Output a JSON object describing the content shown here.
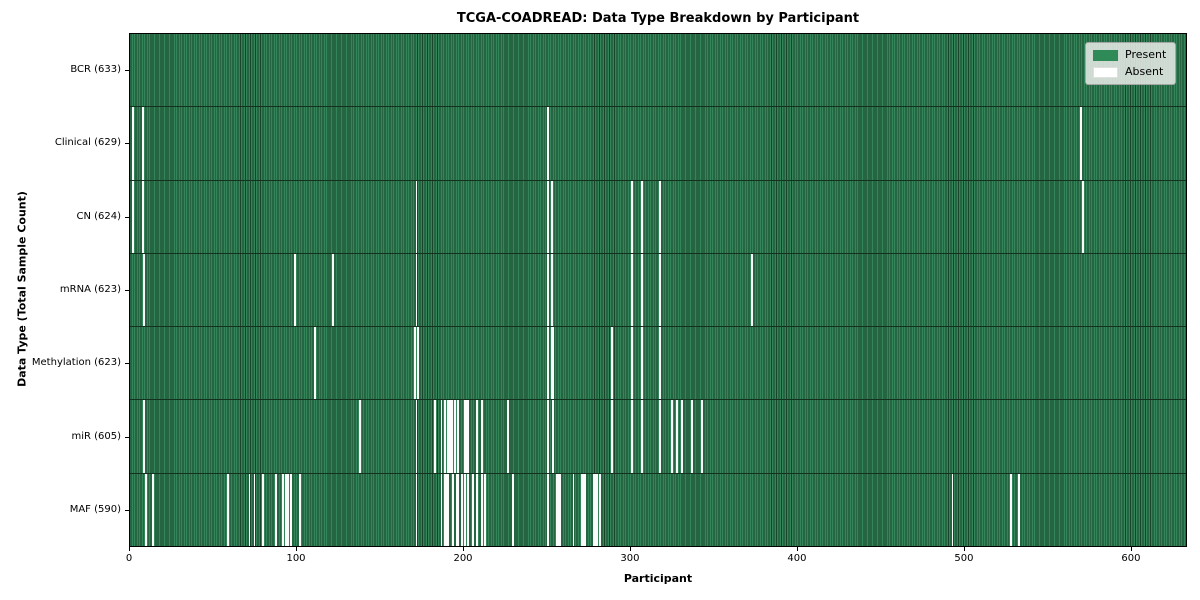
{
  "title": "TCGA-COADREAD: Data Type Breakdown by Participant",
  "chart_data": {
    "type": "heatmap",
    "title": "TCGA-COADREAD: Data Type Breakdown by Participant",
    "xlabel": "Participant",
    "ylabel": "Data Type (Total Sample Count)",
    "xlim": [
      0,
      633
    ],
    "x_ticks": [
      0,
      100,
      200,
      300,
      400,
      500,
      600
    ],
    "n_participants": 633,
    "present_color": "#2e8b57",
    "absent_color": "#ffffff",
    "grid": false,
    "legend_position": "upper right",
    "legend_items": [
      {
        "label": "Present",
        "color": "#2e8b57"
      },
      {
        "label": "Absent",
        "color": "#ffffff"
      }
    ],
    "rows": [
      {
        "label": "BCR (633)",
        "data_type": "BCR",
        "present_count": 633,
        "absent_participants": []
      },
      {
        "label": "Clinical (629)",
        "data_type": "Clinical",
        "present_count": 629,
        "absent_participants": [
          1,
          7,
          250,
          569
        ]
      },
      {
        "label": "CN (624)",
        "data_type": "CN",
        "present_count": 624,
        "absent_participants": [
          1,
          7,
          171,
          250,
          252,
          300,
          306,
          317,
          570
        ]
      },
      {
        "label": "mRNA (623)",
        "data_type": "mRNA",
        "present_count": 623,
        "absent_participants": [
          8,
          98,
          121,
          171,
          250,
          252,
          300,
          306,
          317,
          372
        ]
      },
      {
        "label": "Methylation (623)",
        "data_type": "Methylation",
        "present_count": 623,
        "absent_participants": [
          110,
          170,
          172,
          250,
          252,
          253,
          288,
          300,
          306,
          317
        ]
      },
      {
        "label": "miR (605)",
        "data_type": "miR",
        "present_count": 605,
        "absent_participants": [
          8,
          137,
          171,
          182,
          186,
          188,
          190,
          191,
          192,
          194,
          196,
          200,
          201,
          202,
          207,
          210,
          226,
          250,
          253,
          288,
          300,
          306,
          317,
          324,
          327,
          330,
          336,
          342
        ]
      },
      {
        "label": "MAF (590)",
        "data_type": "MAF",
        "present_count": 590,
        "absent_participants": [
          9,
          13,
          58,
          71,
          74,
          79,
          87,
          91,
          93,
          94,
          96,
          101,
          171,
          186,
          188,
          189,
          190,
          193,
          195,
          196,
          198,
          200,
          202,
          205,
          207,
          210,
          212,
          229,
          250,
          255,
          256,
          257,
          265,
          270,
          271,
          272,
          277,
          278,
          279,
          281,
          492,
          527,
          532
        ]
      }
    ]
  }
}
